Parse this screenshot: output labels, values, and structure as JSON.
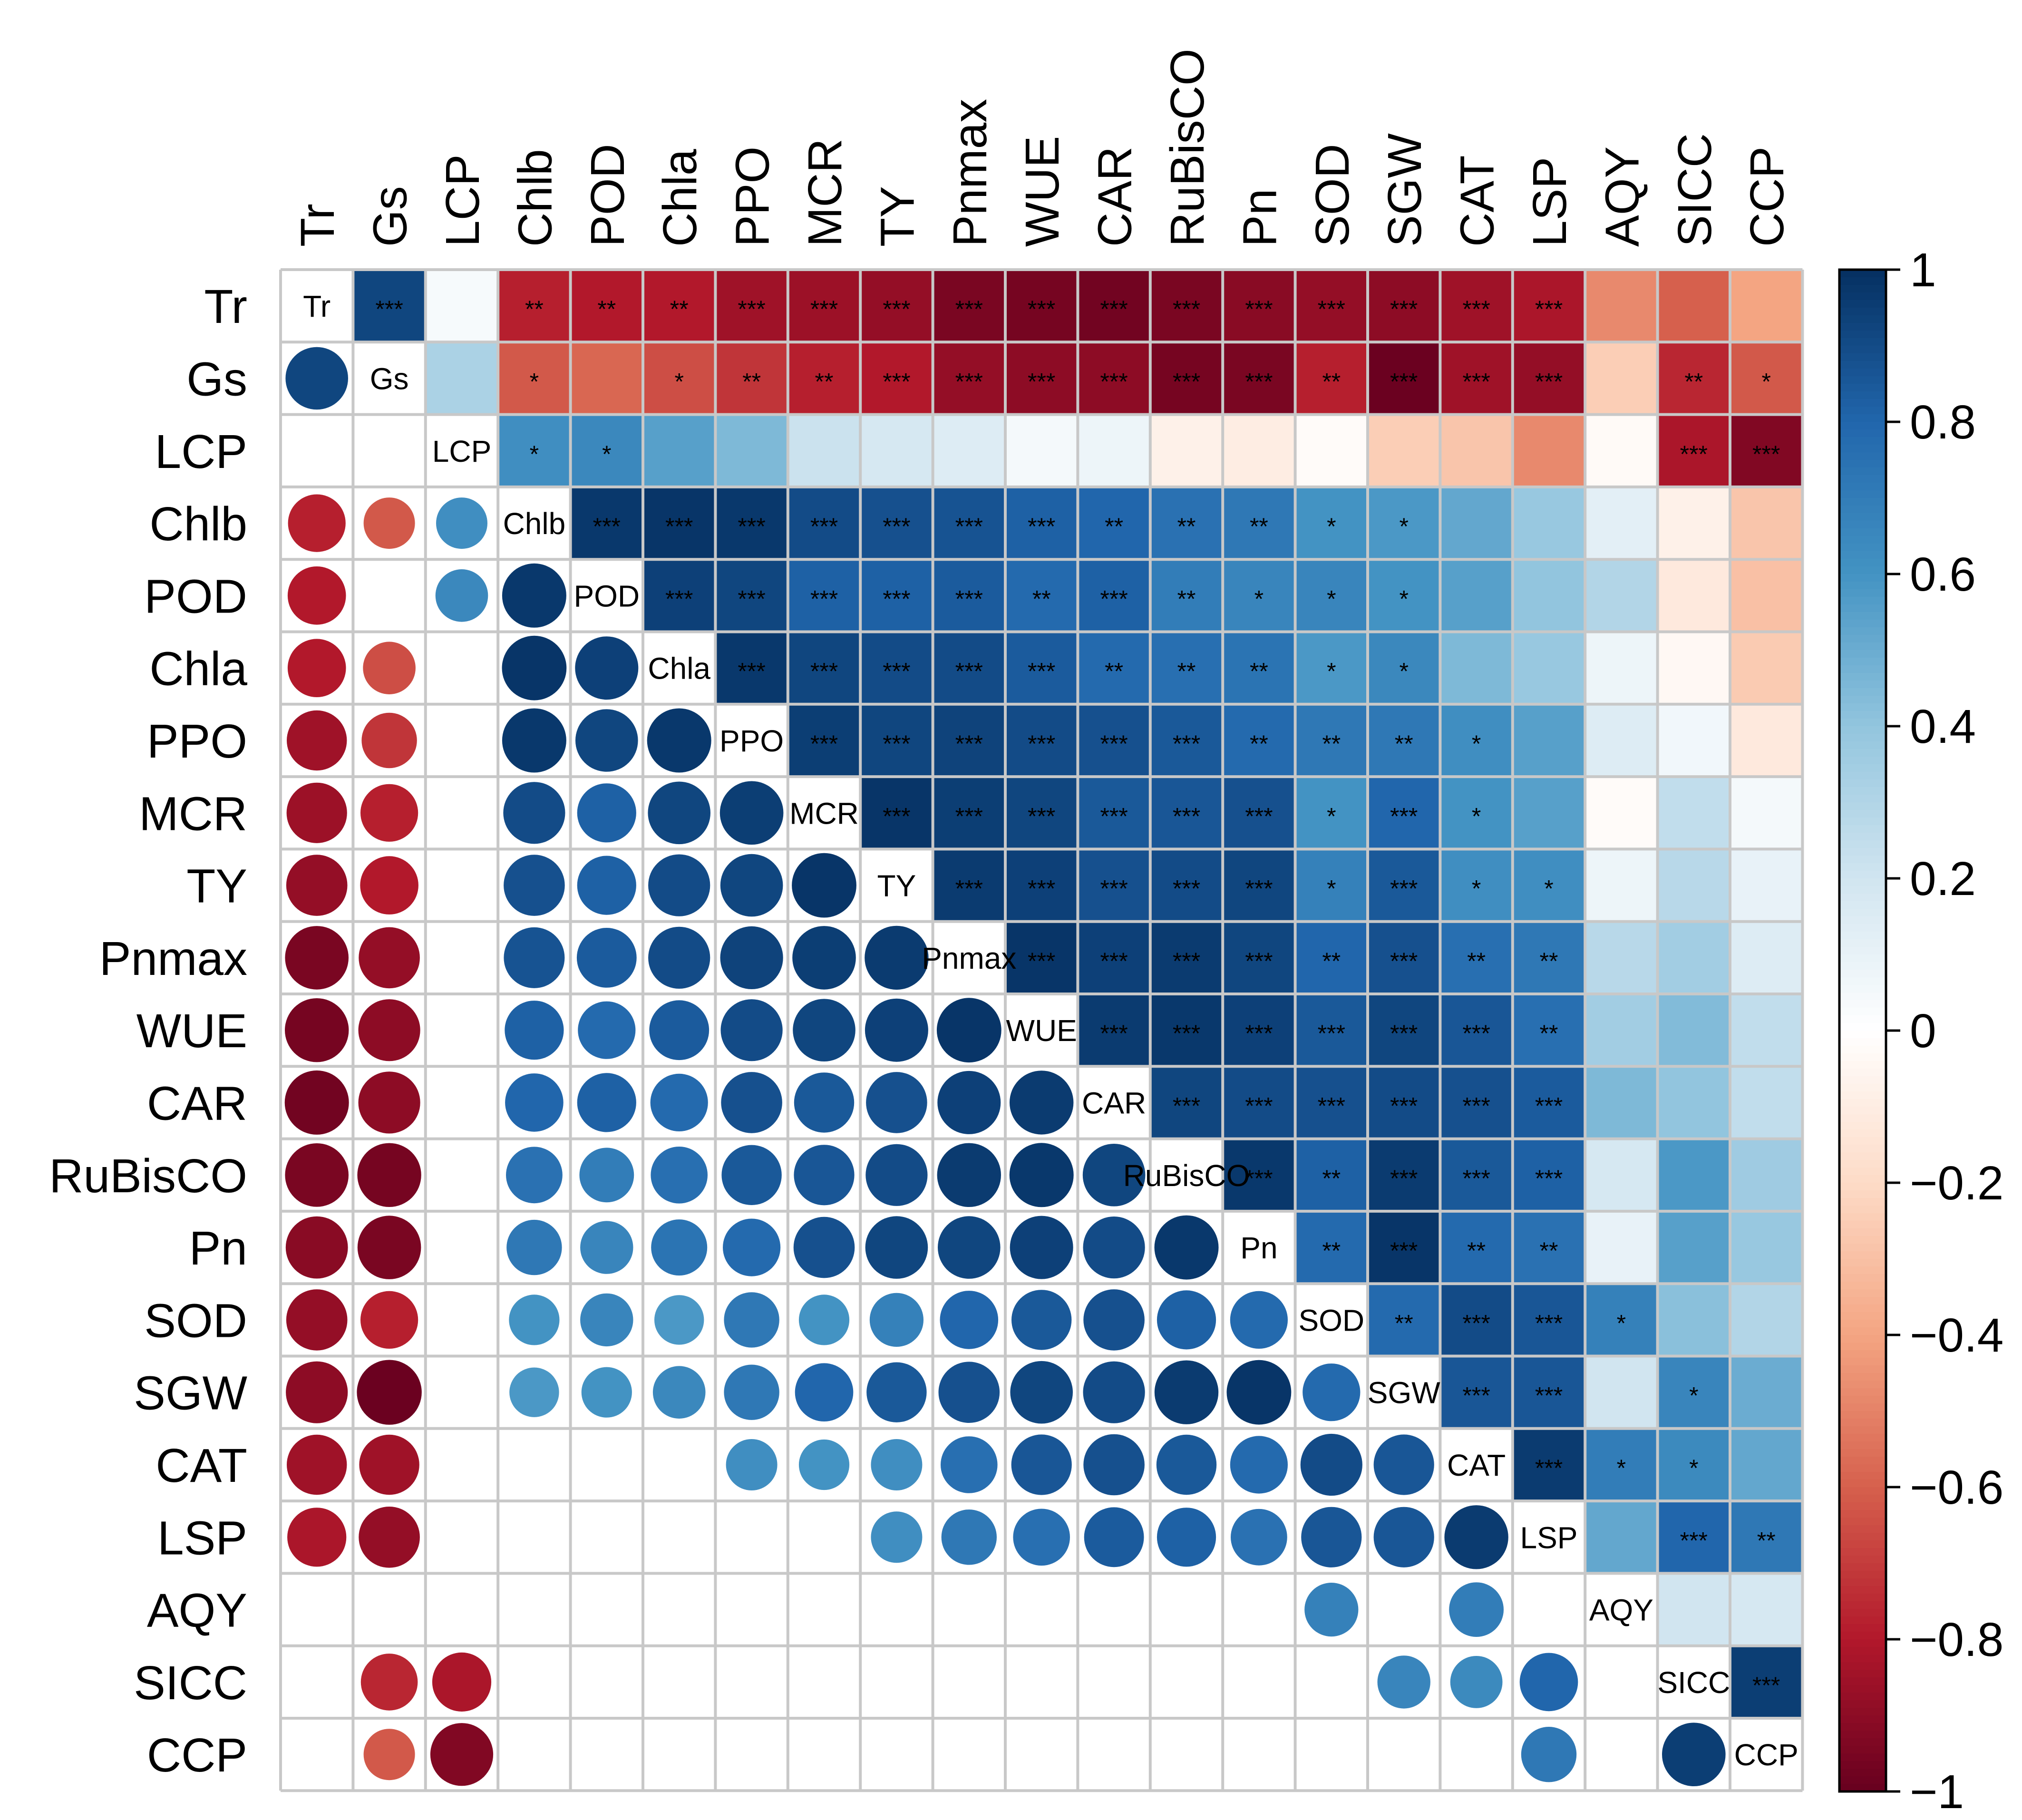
{
  "chart_data": {
    "type": "heatmap",
    "subtype": "correlation-matrix-mixed",
    "upper_method": "color",
    "lower_method": "circle",
    "lower_blank_when": "not significant",
    "variables": [
      "Tr",
      "Gs",
      "LCP",
      "Chlb",
      "POD",
      "Chla",
      "PPO",
      "MCR",
      "TY",
      "Pnmax",
      "WUE",
      "CAR",
      "RuBisCO",
      "Pn",
      "SOD",
      "SGW",
      "CAT",
      "LSP",
      "AQY",
      "SICC",
      "CCP"
    ],
    "upper": {
      "Tr": {
        "Gs": 0.92,
        "LCP": 0.04,
        "Chlb": -0.78,
        "POD": -0.8,
        "Chla": -0.8,
        "PPO": -0.85,
        "MCR": -0.86,
        "TY": -0.88,
        "Pnmax": -0.95,
        "WUE": -0.96,
        "CAR": -0.97,
        "RuBisCO": -0.95,
        "Pn": -0.91,
        "SOD": -0.88,
        "SGW": -0.9,
        "CAT": -0.85,
        "LSP": -0.82,
        "AQY": -0.48,
        "SICC": -0.6,
        "CCP": -0.4
      },
      "Gs": {
        "LCP": 0.32,
        "Chlb": -0.62,
        "POD": -0.58,
        "Chla": -0.65,
        "PPO": -0.72,
        "MCR": -0.78,
        "TY": -0.8,
        "Pnmax": -0.88,
        "WUE": -0.9,
        "CAR": -0.9,
        "RuBisCO": -0.96,
        "Pn": -0.95,
        "SOD": -0.78,
        "SGW": -0.99,
        "CAT": -0.85,
        "LSP": -0.88,
        "AQY": -0.25,
        "SICC": -0.76,
        "CCP": -0.62
      },
      "LCP": {
        "Chlb": 0.62,
        "POD": 0.65,
        "Chla": 0.55,
        "PPO": 0.45,
        "MCR": 0.22,
        "TY": 0.18,
        "Pnmax": 0.15,
        "WUE": 0.05,
        "CAR": 0.08,
        "RuBisCO": -0.08,
        "Pn": -0.1,
        "SOD": -0.02,
        "SGW": -0.25,
        "CAT": -0.28,
        "LSP": -0.48,
        "AQY": -0.03,
        "SICC": -0.82,
        "CCP": -0.93
      },
      "Chlb": {
        "POD": 0.97,
        "Chla": 0.98,
        "PPO": 0.97,
        "MCR": 0.9,
        "TY": 0.88,
        "Pnmax": 0.87,
        "WUE": 0.82,
        "CAR": 0.8,
        "RuBisCO": 0.75,
        "Pn": 0.72,
        "SOD": 0.6,
        "SGW": 0.58,
        "CAT": 0.52,
        "LSP": 0.38,
        "AQY": 0.12,
        "SICC": -0.08,
        "CCP": -0.28
      },
      "POD": {
        "Chla": 0.94,
        "PPO": 0.92,
        "MCR": 0.82,
        "TY": 0.82,
        "Pnmax": 0.84,
        "WUE": 0.78,
        "CAR": 0.82,
        "RuBisCO": 0.7,
        "Pn": 0.66,
        "SOD": 0.66,
        "SGW": 0.6,
        "CAT": 0.55,
        "LSP": 0.4,
        "AQY": 0.3,
        "SICC": -0.12,
        "CCP": -0.3
      },
      "Chla": {
        "PPO": 0.97,
        "MCR": 0.92,
        "TY": 0.9,
        "Pnmax": 0.9,
        "WUE": 0.84,
        "CAR": 0.78,
        "RuBisCO": 0.76,
        "Pn": 0.74,
        "SOD": 0.58,
        "SGW": 0.65,
        "CAT": 0.45,
        "LSP": 0.38,
        "AQY": 0.08,
        "SICC": -0.04,
        "CCP": -0.26
      },
      "PPO": {
        "MCR": 0.95,
        "TY": 0.92,
        "Pnmax": 0.93,
        "WUE": 0.9,
        "CAR": 0.88,
        "RuBisCO": 0.85,
        "Pn": 0.78,
        "SOD": 0.72,
        "SGW": 0.72,
        "CAT": 0.62,
        "LSP": 0.55,
        "AQY": 0.15,
        "SICC": 0.06,
        "CCP": -0.12
      },
      "MCR": {
        "TY": 0.98,
        "Pnmax": 0.95,
        "WUE": 0.92,
        "CAR": 0.85,
        "RuBisCO": 0.86,
        "Pn": 0.88,
        "SOD": 0.6,
        "SGW": 0.8,
        "CAT": 0.6,
        "LSP": 0.55,
        "AQY": -0.02,
        "SICC": 0.25,
        "CCP": 0.05
      },
      "TY": {
        "Pnmax": 0.96,
        "WUE": 0.94,
        "CAR": 0.88,
        "RuBisCO": 0.9,
        "Pn": 0.92,
        "SOD": 0.68,
        "SGW": 0.85,
        "CAT": 0.62,
        "LSP": 0.62,
        "AQY": 0.08,
        "SICC": 0.28,
        "CCP": 0.1
      },
      "Pnmax": {
        "WUE": 0.98,
        "CAR": 0.94,
        "RuBisCO": 0.96,
        "Pn": 0.92,
        "SOD": 0.8,
        "SGW": 0.88,
        "CAT": 0.76,
        "LSP": 0.72,
        "AQY": 0.28,
        "SICC": 0.35,
        "CCP": 0.15
      },
      "WUE": {
        "CAR": 0.96,
        "RuBisCO": 0.97,
        "Pn": 0.94,
        "SOD": 0.85,
        "SGW": 0.92,
        "CAT": 0.86,
        "LSP": 0.76,
        "AQY": 0.35,
        "SICC": 0.44,
        "CCP": 0.25
      },
      "CAR": {
        "RuBisCO": 0.92,
        "Pn": 0.9,
        "SOD": 0.88,
        "SGW": 0.9,
        "CAT": 0.88,
        "LSP": 0.84,
        "AQY": 0.45,
        "SICC": 0.4,
        "CCP": 0.25
      },
      "RuBisCO": {
        "Pn": 0.97,
        "SOD": 0.82,
        "SGW": 0.96,
        "CAT": 0.85,
        "LSP": 0.82,
        "AQY": 0.18,
        "SICC": 0.58,
        "CCP": 0.36
      },
      "Pn": {
        "SOD": 0.78,
        "SGW": 0.98,
        "CAT": 0.78,
        "LSP": 0.75,
        "AQY": 0.1,
        "SICC": 0.55,
        "CCP": 0.38
      },
      "SOD": {
        "SGW": 0.78,
        "CAT": 0.9,
        "LSP": 0.86,
        "AQY": 0.68,
        "SICC": 0.42,
        "CCP": 0.3
      },
      "SGW": {
        "CAT": 0.86,
        "LSP": 0.86,
        "AQY": 0.2,
        "SICC": 0.66,
        "CCP": 0.5
      },
      "CAT": {
        "LSP": 0.96,
        "AQY": 0.7,
        "SICC": 0.64,
        "CCP": 0.52
      },
      "LSP": {
        "AQY": 0.52,
        "SICC": 0.8,
        "CCP": 0.72
      },
      "AQY": {
        "SICC": 0.2,
        "CCP": 0.18
      },
      "SICC": {
        "CCP": 0.95
      }
    },
    "significance": {
      "Tr": {
        "Gs": "***",
        "Chlb": "**",
        "POD": "**",
        "Chla": "**",
        "PPO": "***",
        "MCR": "***",
        "TY": "***",
        "Pnmax": "***",
        "WUE": "***",
        "CAR": "***",
        "RuBisCO": "***",
        "Pn": "***",
        "SOD": "***",
        "SGW": "***",
        "CAT": "***",
        "LSP": "***"
      },
      "Gs": {
        "Chlb": "*",
        "Chla": "*",
        "PPO": "**",
        "MCR": "**",
        "TY": "***",
        "Pnmax": "***",
        "WUE": "***",
        "CAR": "***",
        "RuBisCO": "***",
        "Pn": "***",
        "SOD": "**",
        "SGW": "***",
        "CAT": "***",
        "LSP": "***",
        "SICC": "**",
        "CCP": "*"
      },
      "LCP": {
        "Chlb": "*",
        "POD": "*",
        "SICC": "***",
        "CCP": "***"
      },
      "Chlb": {
        "POD": "***",
        "Chla": "***",
        "PPO": "***",
        "MCR": "***",
        "TY": "***",
        "Pnmax": "***",
        "WUE": "***",
        "CAR": "**",
        "RuBisCO": "**",
        "Pn": "**",
        "SOD": "*",
        "SGW": "*"
      },
      "POD": {
        "Chla": "***",
        "PPO": "***",
        "MCR": "***",
        "TY": "***",
        "Pnmax": "***",
        "WUE": "**",
        "CAR": "***",
        "RuBisCO": "**",
        "Pn": "*",
        "SOD": "*",
        "SGW": "*"
      },
      "Chla": {
        "PPO": "***",
        "MCR": "***",
        "TY": "***",
        "Pnmax": "***",
        "WUE": "***",
        "CAR": "**",
        "RuBisCO": "**",
        "Pn": "**",
        "SOD": "*",
        "SGW": "*"
      },
      "PPO": {
        "MCR": "***",
        "TY": "***",
        "Pnmax": "***",
        "WUE": "***",
        "CAR": "***",
        "RuBisCO": "***",
        "Pn": "**",
        "SOD": "**",
        "SGW": "**",
        "CAT": "*"
      },
      "MCR": {
        "TY": "***",
        "Pnmax": "***",
        "WUE": "***",
        "CAR": "***",
        "RuBisCO": "***",
        "Pn": "***",
        "SOD": "*",
        "SGW": "***",
        "CAT": "*"
      },
      "TY": {
        "Pnmax": "***",
        "WUE": "***",
        "CAR": "***",
        "RuBisCO": "***",
        "Pn": "***",
        "SOD": "*",
        "SGW": "***",
        "CAT": "*",
        "LSP": "*"
      },
      "Pnmax": {
        "WUE": "***",
        "CAR": "***",
        "RuBisCO": "***",
        "Pn": "***",
        "SOD": "**",
        "SGW": "***",
        "CAT": "**",
        "LSP": "**"
      },
      "WUE": {
        "CAR": "***",
        "RuBisCO": "***",
        "Pn": "***",
        "SOD": "***",
        "SGW": "***",
        "CAT": "***",
        "LSP": "**"
      },
      "CAR": {
        "RuBisCO": "***",
        "Pn": "***",
        "SOD": "***",
        "SGW": "***",
        "CAT": "***",
        "LSP": "***"
      },
      "RuBisCO": {
        "Pn": "***",
        "SOD": "**",
        "SGW": "***",
        "CAT": "***",
        "LSP": "***"
      },
      "Pn": {
        "SOD": "**",
        "SGW": "***",
        "CAT": "**",
        "LSP": "**"
      },
      "SOD": {
        "SGW": "**",
        "CAT": "***",
        "LSP": "***",
        "AQY": "*"
      },
      "SGW": {
        "CAT": "***",
        "LSP": "***",
        "SICC": "*"
      },
      "CAT": {
        "LSP": "***",
        "AQY": "*",
        "SICC": "*"
      },
      "LSP": {
        "SICC": "***",
        "CCP": "**"
      },
      "SICC": {
        "CCP": "***"
      }
    },
    "legend": {
      "range": [
        -1,
        1
      ],
      "ticks": [
        1,
        0.8,
        0.6,
        0.4,
        0.2,
        0,
        -0.2,
        -0.4,
        -0.6,
        -0.8,
        -1
      ],
      "tick_labels": [
        "1",
        "0.8",
        "0.6",
        "0.4",
        "0.2",
        "0",
        "−0.2",
        "−0.4",
        "−0.6",
        "−0.8",
        "−1"
      ],
      "position": "right"
    },
    "palette": [
      "#67001F",
      "#B2182B",
      "#D6604D",
      "#F4A582",
      "#FDDBC7",
      "#FFFFFF",
      "#D1E5F0",
      "#92C5DE",
      "#4393C3",
      "#2166AC",
      "#053061"
    ],
    "grid": true
  }
}
